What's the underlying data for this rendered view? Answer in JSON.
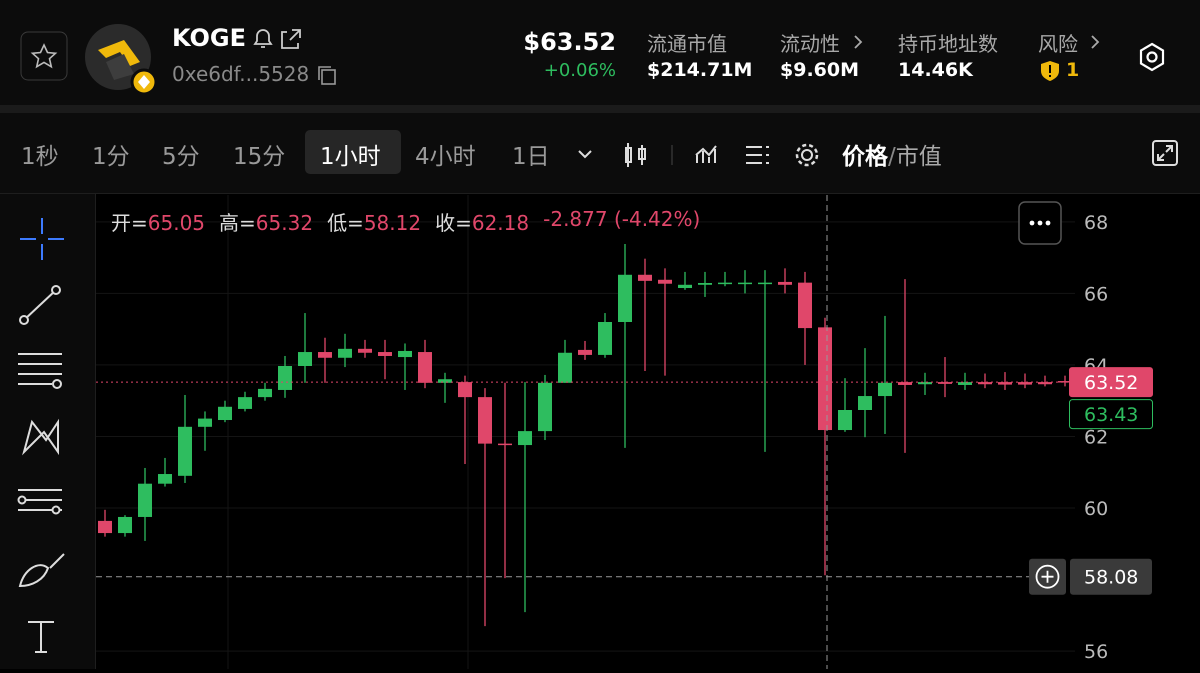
{
  "header": {
    "token_name": "KOGE",
    "address": "0xe6df...5528",
    "price": "$63.52",
    "change": "+0.06%",
    "stats": [
      {
        "label": "流通市值",
        "value": "$214.71M"
      },
      {
        "label": "流动性",
        "value": "$9.60M"
      },
      {
        "label": "持币地址数",
        "value": "14.46K"
      },
      {
        "label": "风险",
        "value": "1"
      }
    ]
  },
  "toolbar": {
    "intervals": [
      "1秒",
      "1分",
      "5分",
      "15分",
      "1小时",
      "4小时",
      "1日"
    ],
    "active_interval": 4,
    "price_toggle": [
      "价格",
      "/",
      "市值"
    ]
  },
  "chart_data": {
    "type": "candlestick",
    "legend": {
      "labels": [
        "开=",
        "高=",
        "低=",
        "收="
      ],
      "values": [
        65.05,
        65.32,
        58.12,
        62.18
      ],
      "change": "-2.877 (-4.42%)"
    },
    "up_color": "#2ebd5f",
    "down_color": "#e0476a",
    "open": [
      59.64,
      59.3,
      59.75,
      60.68,
      60.9,
      62.27,
      62.46,
      62.77,
      63.1,
      63.3,
      63.97,
      64.36,
      64.2,
      64.45,
      64.36,
      64.22,
      64.36,
      63.5,
      63.52,
      63.1,
      61.8,
      61.76,
      62.15,
      63.5,
      64.42,
      64.28,
      65.2,
      66.52,
      66.38,
      66.15,
      66.24,
      66.26,
      66.26,
      66.28,
      66.32,
      66.3,
      65.05,
      62.18,
      62.74,
      63.13,
      63.52,
      63.46,
      63.52,
      63.44,
      63.52,
      63.52,
      63.52,
      63.52,
      63.55
    ],
    "high": [
      59.95,
      59.8,
      61.12,
      61.4,
      63.16,
      62.7,
      63.0,
      63.25,
      63.5,
      64.25,
      65.45,
      64.76,
      64.87,
      64.7,
      64.7,
      64.6,
      64.7,
      63.78,
      63.7,
      63.35,
      63.5,
      63.52,
      63.72,
      64.7,
      64.67,
      65.45,
      67.38,
      66.97,
      66.7,
      66.6,
      66.6,
      66.6,
      66.65,
      66.65,
      66.7,
      66.6,
      65.32,
      63.63,
      64.47,
      65.37,
      66.4,
      63.78,
      64.22,
      63.78,
      63.76,
      63.8,
      63.76,
      63.7,
      63.7
    ],
    "low": [
      59.2,
      59.2,
      59.08,
      60.6,
      60.7,
      61.6,
      62.4,
      62.7,
      63.0,
      63.08,
      63.5,
      63.5,
      63.94,
      64.2,
      63.6,
      63.3,
      63.35,
      62.94,
      61.23,
      56.7,
      58.04,
      57.09,
      61.9,
      63.5,
      64.14,
      64.2,
      61.68,
      63.83,
      63.7,
      66.1,
      65.9,
      66.2,
      66.0,
      61.57,
      66.0,
      64.0,
      58.12,
      62.13,
      61.98,
      62.07,
      61.54,
      63.16,
      63.1,
      63.3,
      63.35,
      63.3,
      63.35,
      63.4,
      63.4
    ],
    "close": [
      59.3,
      59.75,
      60.68,
      60.95,
      62.27,
      62.5,
      62.83,
      63.1,
      63.33,
      63.97,
      64.36,
      64.2,
      64.45,
      64.34,
      64.25,
      64.39,
      63.5,
      63.6,
      63.1,
      61.8,
      61.76,
      62.15,
      63.5,
      64.34,
      64.28,
      65.2,
      66.52,
      66.35,
      66.27,
      66.24,
      66.29,
      66.3,
      66.3,
      66.3,
      66.24,
      65.03,
      62.18,
      62.74,
      63.13,
      63.5,
      63.44,
      63.52,
      63.47,
      63.52,
      63.46,
      63.45,
      63.45,
      63.46,
      63.52
    ],
    "ylim": [
      55.5,
      68.75
    ],
    "yticks": [
      56,
      60,
      62,
      64,
      66,
      68
    ],
    "grid": true,
    "price_labels": [
      {
        "value": 63.52,
        "color": "#e0476a"
      },
      {
        "value": 63.43,
        "color": "#2ebd5f"
      }
    ],
    "crosshair": 58.08
  }
}
